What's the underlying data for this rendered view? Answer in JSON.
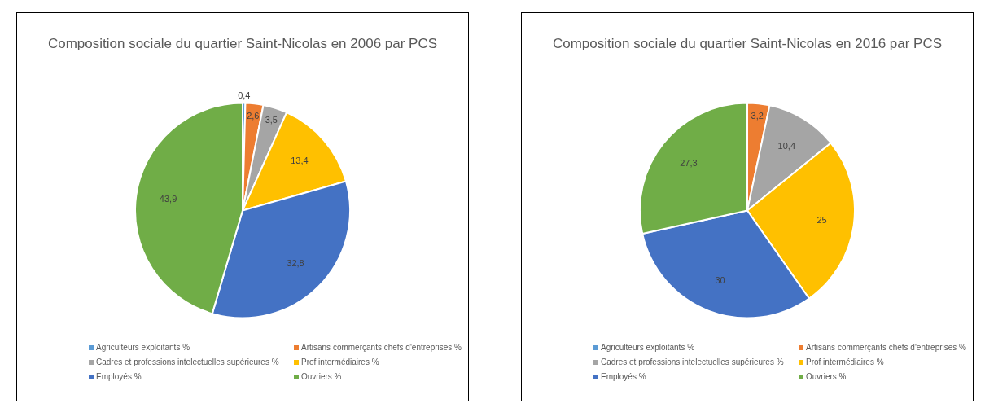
{
  "chart_data": [
    {
      "type": "pie",
      "title": "Composition sociale du quartier Saint-Nicolas en 2006 par PCS",
      "categories": [
        "Agriculteurs exploitants %",
        "Artisans commerçants chefs d'entreprises %",
        "Cadres et professions intelectuelles supérieures %",
        "Prof intermédiaires %",
        "Employés %",
        "Ouvriers %"
      ],
      "values": [
        0.4,
        2.6,
        3.5,
        13.4,
        32.8,
        43.9
      ],
      "value_labels": [
        "0,4",
        "2,6",
        "3,5",
        "13,4",
        "32,8",
        "43,9"
      ],
      "colors": [
        "#5b9bd5",
        "#ed7d31",
        "#a5a5a5",
        "#ffc000",
        "#4472c4",
        "#70ad47"
      ],
      "legend": "bottom"
    },
    {
      "type": "pie",
      "title": "Composition sociale du quartier Saint-Nicolas en 2016 par PCS",
      "categories": [
        "Agriculteurs exploitants %",
        "Artisans commerçants chefs d'entreprises %",
        "Cadres et professions intelectuelles supérieures %",
        "Prof intermédiaires %",
        "Employés %",
        "Ouvriers %"
      ],
      "values": [
        0,
        3.2,
        10.4,
        25,
        30,
        27.3
      ],
      "value_labels": [
        null,
        "3,2",
        "10,4",
        "25",
        "30",
        "27,3"
      ],
      "colors": [
        "#5b9bd5",
        "#ed7d31",
        "#a5a5a5",
        "#ffc000",
        "#4472c4",
        "#70ad47"
      ],
      "legend": "bottom"
    }
  ]
}
